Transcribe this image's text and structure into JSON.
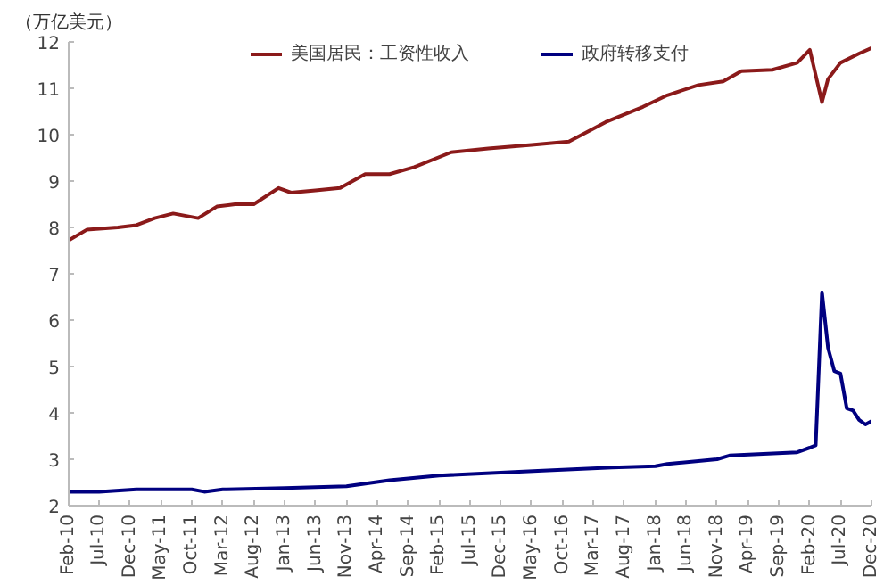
{
  "chart_data": {
    "type": "line",
    "ylabel": "（万亿美元）",
    "legend": "top",
    "grid": false,
    "xticks": [
      {
        "value": "2010-02",
        "label": "Feb-10"
      },
      {
        "value": "2010-07",
        "label": "Jul-10"
      },
      {
        "value": "2010-12",
        "label": "Dec-10"
      },
      {
        "value": "2011-05",
        "label": "May-11"
      },
      {
        "value": "2011-10",
        "label": "Oct-11"
      },
      {
        "value": "2012-03",
        "label": "Mar-12"
      },
      {
        "value": "2012-08",
        "label": "Aug-12"
      },
      {
        "value": "2013-01",
        "label": "Jan-13"
      },
      {
        "value": "2013-06",
        "label": "Jun-13"
      },
      {
        "value": "2013-11",
        "label": "Nov-13"
      },
      {
        "value": "2014-04",
        "label": "Apr-14"
      },
      {
        "value": "2014-09",
        "label": "Sep-14"
      },
      {
        "value": "2015-02",
        "label": "Feb-15"
      },
      {
        "value": "2015-07",
        "label": "Jul-15"
      },
      {
        "value": "2015-12",
        "label": "Dec-15"
      },
      {
        "value": "2016-05",
        "label": "May-16"
      },
      {
        "value": "2016-10",
        "label": "Oct-16"
      },
      {
        "value": "2017-03",
        "label": "Mar-17"
      },
      {
        "value": "2017-08",
        "label": "Aug-17"
      },
      {
        "value": "2018-01",
        "label": "Jan-18"
      },
      {
        "value": "2018-06",
        "label": "Jun-18"
      },
      {
        "value": "2018-11",
        "label": "Nov-18"
      },
      {
        "value": "2019-04",
        "label": "Apr-19"
      },
      {
        "value": "2019-09",
        "label": "Sep-19"
      },
      {
        "value": "2020-02",
        "label": "Feb-20"
      },
      {
        "value": "2020-07",
        "label": "Jul-20"
      },
      {
        "value": "2020-12",
        "label": "Dec-20"
      }
    ],
    "xlim": [
      "2010-02",
      "2020-12"
    ],
    "ylim": [
      2,
      12
    ],
    "yticks": [
      2,
      3,
      4,
      5,
      6,
      7,
      8,
      9,
      10,
      11,
      12
    ],
    "series": [
      {
        "name": "美国居民：工资性收入",
        "color": "#8b1a1a",
        "x": [
          "2010-02",
          "2010-05",
          "2010-10",
          "2011-01",
          "2011-04",
          "2011-07",
          "2011-11",
          "2012-02",
          "2012-05",
          "2012-08",
          "2012-12",
          "2013-02",
          "2013-06",
          "2013-10",
          "2014-02",
          "2014-06",
          "2014-10",
          "2015-04",
          "2015-10",
          "2016-05",
          "2016-11",
          "2017-05",
          "2017-11",
          "2018-03",
          "2018-08",
          "2018-12",
          "2019-03",
          "2019-08",
          "2019-12",
          "2020-02",
          "2020-04",
          "2020-05",
          "2020-07",
          "2020-10",
          "2020-12"
        ],
        "values": [
          7.72,
          7.95,
          8.0,
          8.05,
          8.2,
          8.3,
          8.2,
          8.45,
          8.5,
          8.5,
          8.85,
          8.75,
          8.8,
          8.85,
          9.15,
          9.15,
          9.3,
          9.62,
          9.7,
          9.78,
          9.85,
          10.27,
          10.6,
          10.85,
          11.07,
          11.15,
          11.37,
          11.4,
          11.55,
          11.83,
          10.7,
          11.2,
          11.55,
          11.75,
          11.87
        ]
      },
      {
        "name": "政府转移支付",
        "color": "#000080",
        "x": [
          "2010-02",
          "2010-07",
          "2011-01",
          "2011-10",
          "2011-12",
          "2012-03",
          "2013-01",
          "2013-11",
          "2014-06",
          "2015-02",
          "2016-06",
          "2017-06",
          "2018-01",
          "2018-03",
          "2018-11",
          "2019-01",
          "2019-12",
          "2020-02",
          "2020-03",
          "2020-04",
          "2020-05",
          "2020-06",
          "2020-07",
          "2020-08",
          "2020-09",
          "2020-10",
          "2020-11",
          "2020-12"
        ],
        "values": [
          2.3,
          2.3,
          2.35,
          2.35,
          2.3,
          2.35,
          2.38,
          2.42,
          2.55,
          2.65,
          2.75,
          2.82,
          2.85,
          2.9,
          3.0,
          3.08,
          3.15,
          3.25,
          3.3,
          6.6,
          5.4,
          4.9,
          4.85,
          4.1,
          4.05,
          3.85,
          3.75,
          3.82
        ]
      }
    ]
  }
}
